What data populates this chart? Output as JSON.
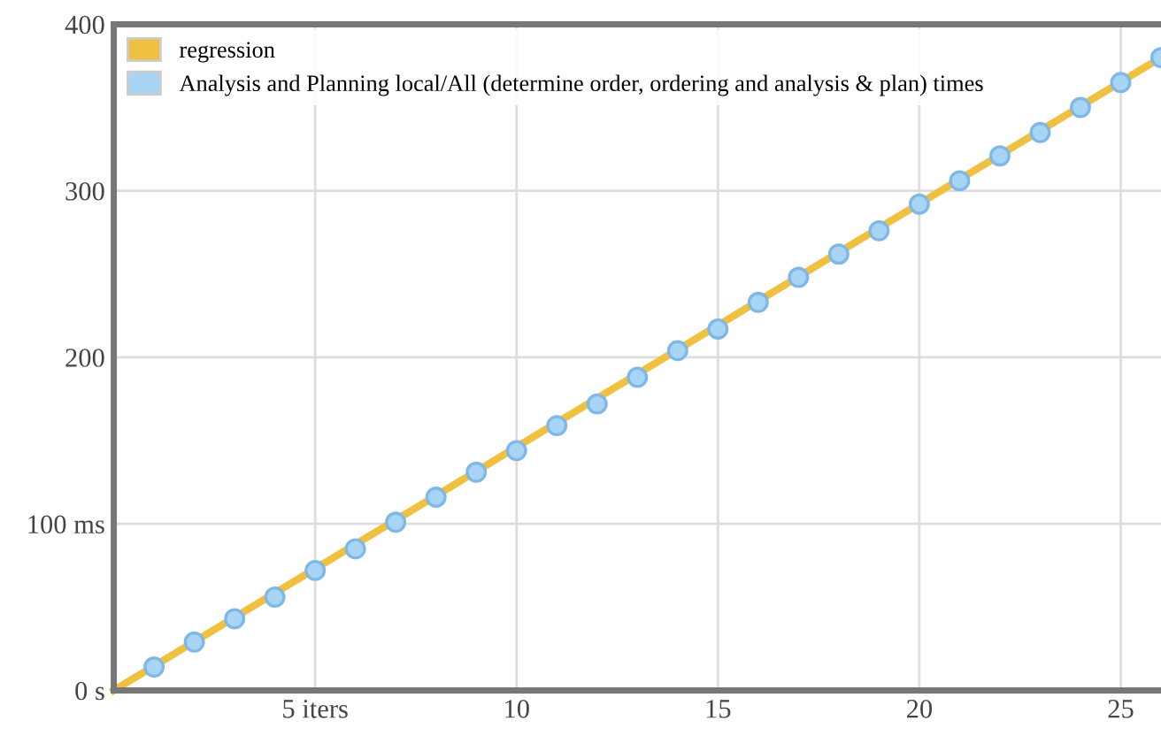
{
  "chart_data": {
    "type": "line",
    "xlim": [
      0,
      26
    ],
    "ylim": [
      0,
      400
    ],
    "xticks": [
      {
        "value": 5,
        "label": "5 iters"
      },
      10,
      15,
      20,
      25
    ],
    "yticks": [
      {
        "value": 0,
        "label": "0 s"
      },
      {
        "value": 100,
        "label": "100 ms"
      },
      200,
      300,
      400
    ],
    "grid": true,
    "legend": "top left",
    "series": [
      {
        "name": "regression",
        "color": "#f0c040",
        "x": [
          0,
          26
        ],
        "values": [
          0,
          380
        ]
      },
      {
        "name": "Analysis and Planning local/All (determine order, ordering and analysis & plan) times",
        "color": "#a8d4f5",
        "type": "scatter",
        "marker": "circle",
        "x": [
          1,
          2,
          3,
          4,
          5,
          6,
          7,
          8,
          9,
          10,
          11,
          12,
          13,
          14,
          15,
          16,
          17,
          18,
          19,
          20,
          21,
          22,
          23,
          24,
          25,
          26
        ],
        "values": [
          14,
          29,
          43,
          56,
          72,
          85,
          101,
          116,
          131,
          144,
          159,
          172,
          188,
          204,
          217,
          233,
          248,
          262,
          276,
          292,
          306,
          321,
          335,
          350,
          365,
          380
        ]
      }
    ]
  }
}
